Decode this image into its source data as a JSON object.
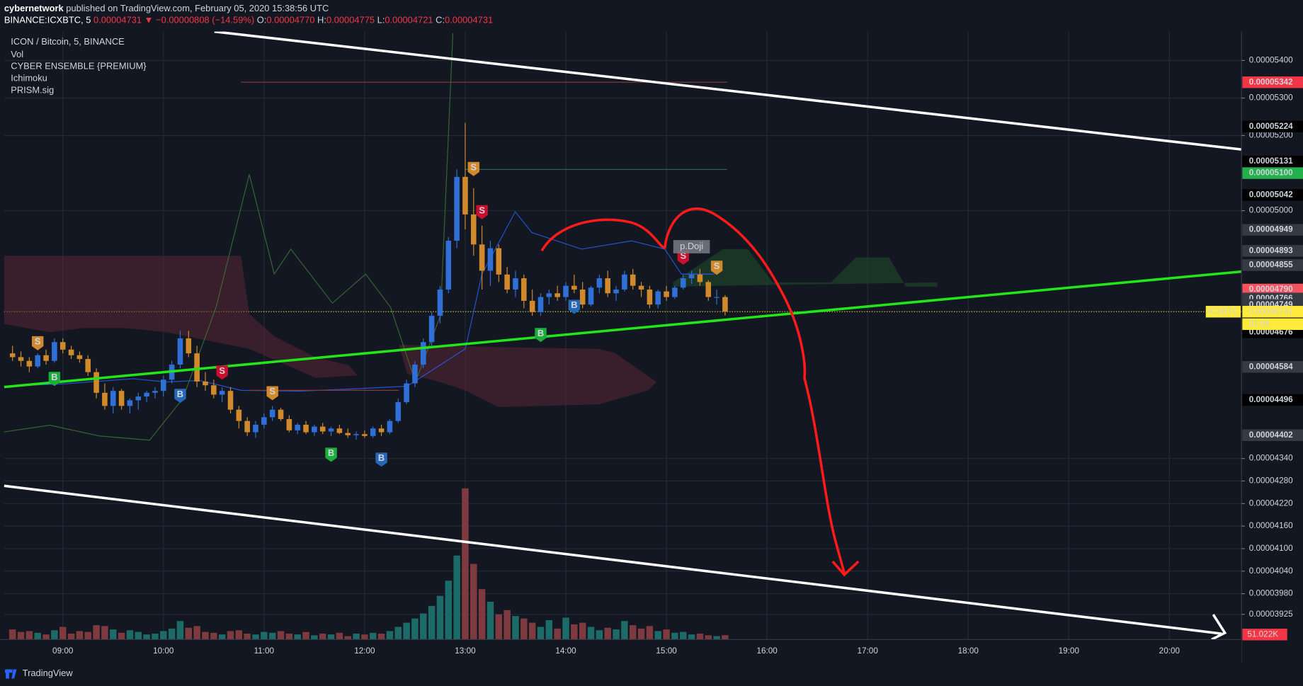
{
  "header": {
    "author": "cybernetwork",
    "published": "published on TradingView.com, February 05, 2020 15:38:56 UTC",
    "symbol": "BINANCE:ICXBTC, 5",
    "last": "0.00004731",
    "arrow": "▼",
    "change": "−0.00000808 (−14.59%)",
    "ohlc": [
      {
        "k": "O:",
        "v": "0.00004770"
      },
      {
        "k": "H:",
        "v": "0.00004775"
      },
      {
        "k": "L:",
        "v": "0.00004721"
      },
      {
        "k": "C:",
        "v": "0.00004731"
      }
    ]
  },
  "chart_data": {
    "type": "candlestick",
    "indicators": [
      "CYBER ENSEMBLE {PREMIUM}",
      "Ichimoku",
      "PRISM.sig"
    ],
    "x": [
      "08:30",
      "08:35",
      "08:40",
      "08:45",
      "08:50",
      "08:55",
      "09:00",
      "09:05",
      "09:10",
      "09:15",
      "09:20",
      "09:25",
      "09:30",
      "09:35",
      "09:40",
      "09:45",
      "09:50",
      "09:55",
      "10:00",
      "10:05",
      "10:10",
      "10:15",
      "10:20",
      "10:25",
      "10:30",
      "10:35",
      "10:40",
      "10:45",
      "10:50",
      "10:55",
      "11:00",
      "11:05",
      "11:10",
      "11:15",
      "11:20",
      "11:25",
      "11:30",
      "11:35",
      "11:40",
      "11:45",
      "11:50",
      "11:55",
      "12:00",
      "12:05",
      "12:10",
      "12:15",
      "12:20",
      "12:25",
      "12:30",
      "12:35",
      "12:40",
      "12:45",
      "12:50",
      "12:55",
      "13:00",
      "13:05",
      "13:10",
      "13:15",
      "13:20",
      "13:25",
      "13:30",
      "13:35",
      "13:40",
      "13:45",
      "13:50",
      "13:55",
      "14:00",
      "14:05",
      "14:10",
      "14:15",
      "14:20",
      "14:25",
      "14:30",
      "14:35",
      "14:40",
      "14:45",
      "14:50",
      "14:55",
      "15:00",
      "15:05",
      "15:10",
      "15:15",
      "15:20",
      "15:25",
      "15:30",
      "15:35"
    ],
    "series": [
      {
        "name": "ICON / Bitcoin, 5, BINANCE",
        "up_color": "#2f6fd6",
        "down_color": "#d08a2c",
        "open": [
          4.62e-05,
          4.61e-05,
          4.6e-05,
          4.585e-05,
          4.615e-05,
          4.6e-05,
          4.65e-05,
          4.63e-05,
          4.615e-05,
          4.605e-05,
          4.57e-05,
          4.515e-05,
          4.48e-05,
          4.52e-05,
          4.48e-05,
          4.495e-05,
          4.505e-05,
          4.515e-05,
          4.52e-05,
          4.55e-05,
          4.59e-05,
          4.66e-05,
          4.62e-05,
          4.545e-05,
          4.535e-05,
          4.51e-05,
          4.52e-05,
          4.47e-05,
          4.44e-05,
          4.41e-05,
          4.43e-05,
          4.45e-05,
          4.47e-05,
          4.445e-05,
          4.415e-05,
          4.43e-05,
          4.41e-05,
          4.425e-05,
          4.412e-05,
          4.42e-05,
          4.408e-05,
          4.402e-05,
          4.405e-05,
          4.4e-05,
          4.42e-05,
          4.41e-05,
          4.44e-05,
          4.49e-05,
          4.54e-05,
          4.59e-05,
          4.65e-05,
          4.72e-05,
          4.79e-05,
          4.92e-05,
          5.09e-05,
          4.99e-05,
          4.91e-05,
          4.84e-05,
          4.9e-05,
          4.83e-05,
          4.79e-05,
          4.82e-05,
          4.76e-05,
          4.73e-05,
          4.77e-05,
          4.78e-05,
          4.77e-05,
          4.8e-05,
          4.79e-05,
          4.75e-05,
          4.795e-05,
          4.82e-05,
          4.78e-05,
          4.79e-05,
          4.83e-05,
          4.8e-05,
          4.79e-05,
          4.75e-05,
          4.785e-05,
          4.77e-05,
          4.795e-05,
          4.82e-05,
          4.83e-05,
          4.81e-05,
          4.77e-05,
          4.77e-05
        ],
        "high": [
          4.64e-05,
          4.625e-05,
          4.61e-05,
          4.62e-05,
          4.63e-05,
          4.66e-05,
          4.66e-05,
          4.64e-05,
          4.625e-05,
          4.615e-05,
          4.58e-05,
          4.54e-05,
          4.53e-05,
          4.525e-05,
          4.5e-05,
          4.515e-05,
          4.52e-05,
          4.53e-05,
          4.56e-05,
          4.6e-05,
          4.68e-05,
          4.68e-05,
          4.64e-05,
          4.57e-05,
          4.55e-05,
          4.53e-05,
          4.53e-05,
          4.48e-05,
          4.45e-05,
          4.44e-05,
          4.46e-05,
          4.48e-05,
          4.475e-05,
          4.455e-05,
          4.435e-05,
          4.44e-05,
          4.43e-05,
          4.435e-05,
          4.425e-05,
          4.43e-05,
          4.42e-05,
          4.412e-05,
          4.415e-05,
          4.425e-05,
          4.43e-05,
          4.445e-05,
          4.5e-05,
          4.55e-05,
          4.6e-05,
          4.66e-05,
          4.73e-05,
          4.8e-05,
          4.93e-05,
          5.11e-05,
          5.234e-05,
          5.06e-05,
          4.96e-05,
          4.92e-05,
          4.91e-05,
          4.85e-05,
          4.84e-05,
          4.83e-05,
          4.79e-05,
          4.78e-05,
          4.79e-05,
          4.8e-05,
          4.81e-05,
          4.83e-05,
          4.81e-05,
          4.8e-05,
          4.83e-05,
          4.84e-05,
          4.8e-05,
          4.84e-05,
          4.845e-05,
          4.81e-05,
          4.8e-05,
          4.79e-05,
          4.8e-05,
          4.8e-05,
          4.83e-05,
          4.84e-05,
          4.845e-05,
          4.815e-05,
          4.79e-05,
          4.775e-05
        ],
        "low": [
          4.6e-05,
          4.585e-05,
          4.57e-05,
          4.58e-05,
          4.59e-05,
          4.595e-05,
          4.62e-05,
          4.605e-05,
          4.595e-05,
          4.56e-05,
          4.5e-05,
          4.47e-05,
          4.46e-05,
          4.47e-05,
          4.46e-05,
          4.47e-05,
          4.49e-05,
          4.5e-05,
          4.505e-05,
          4.54e-05,
          4.58e-05,
          4.61e-05,
          4.53e-05,
          4.52e-05,
          4.5e-05,
          4.49e-05,
          4.46e-05,
          4.42e-05,
          4.4e-05,
          4.395e-05,
          4.42e-05,
          4.44e-05,
          4.44e-05,
          4.41e-05,
          4.405e-05,
          4.405e-05,
          4.4e-05,
          4.405e-05,
          4.4e-05,
          4.405e-05,
          4.395e-05,
          4.39e-05,
          4.395e-05,
          4.395e-05,
          4.4e-05,
          4.405e-05,
          4.435e-05,
          4.485e-05,
          4.53e-05,
          4.58e-05,
          4.64e-05,
          4.7e-05,
          4.78e-05,
          4.9e-05,
          4.95e-05,
          4.88e-05,
          4.79e-05,
          4.8e-05,
          4.81e-05,
          4.78e-05,
          4.77e-05,
          4.74e-05,
          4.72e-05,
          4.72e-05,
          4.75e-05,
          4.76e-05,
          4.76e-05,
          4.78e-05,
          4.74e-05,
          4.745e-05,
          4.78e-05,
          4.77e-05,
          4.76e-05,
          4.785e-05,
          4.79e-05,
          4.77e-05,
          4.74e-05,
          4.74e-05,
          4.76e-05,
          4.765e-05,
          4.79e-05,
          4.805e-05,
          4.8e-05,
          4.76e-05,
          4.75e-05,
          4.721e-05
        ],
        "close": [
          4.61e-05,
          4.6e-05,
          4.585e-05,
          4.615e-05,
          4.6e-05,
          4.65e-05,
          4.63e-05,
          4.615e-05,
          4.605e-05,
          4.57e-05,
          4.515e-05,
          4.48e-05,
          4.52e-05,
          4.48e-05,
          4.495e-05,
          4.505e-05,
          4.515e-05,
          4.52e-05,
          4.55e-05,
          4.59e-05,
          4.66e-05,
          4.62e-05,
          4.545e-05,
          4.535e-05,
          4.51e-05,
          4.52e-05,
          4.47e-05,
          4.44e-05,
          4.41e-05,
          4.43e-05,
          4.45e-05,
          4.47e-05,
          4.445e-05,
          4.415e-05,
          4.43e-05,
          4.41e-05,
          4.425e-05,
          4.412e-05,
          4.42e-05,
          4.408e-05,
          4.402e-05,
          4.405e-05,
          4.4e-05,
          4.42e-05,
          4.41e-05,
          4.44e-05,
          4.49e-05,
          4.54e-05,
          4.59e-05,
          4.65e-05,
          4.72e-05,
          4.79e-05,
          4.92e-05,
          5.09e-05,
          4.99e-05,
          4.91e-05,
          4.84e-05,
          4.9e-05,
          4.83e-05,
          4.79e-05,
          4.82e-05,
          4.76e-05,
          4.73e-05,
          4.77e-05,
          4.78e-05,
          4.77e-05,
          4.8e-05,
          4.79e-05,
          4.75e-05,
          4.795e-05,
          4.82e-05,
          4.78e-05,
          4.79e-05,
          4.83e-05,
          4.8e-05,
          4.79e-05,
          4.75e-05,
          4.785e-05,
          4.77e-05,
          4.795e-05,
          4.82e-05,
          4.83e-05,
          4.81e-05,
          4.77e-05,
          4.77e-05,
          4.731e-05
        ]
      },
      {
        "name": "Vol",
        "up_color": "#1d6b68",
        "down_color": "#7e3a3e",
        "values": [
          120000,
          90000,
          100000,
          80000,
          60000,
          110000,
          150000,
          70000,
          100000,
          90000,
          170000,
          160000,
          120000,
          80000,
          110000,
          90000,
          60000,
          70000,
          100000,
          130000,
          220000,
          140000,
          160000,
          90000,
          80000,
          60000,
          100000,
          110000,
          70000,
          60000,
          90000,
          80000,
          100000,
          70000,
          60000,
          90000,
          50000,
          70000,
          60000,
          80000,
          40000,
          70000,
          60000,
          80000,
          70000,
          100000,
          150000,
          200000,
          250000,
          310000,
          400000,
          520000,
          700000,
          1000000,
          1800000,
          900000,
          600000,
          450000,
          300000,
          350000,
          280000,
          250000,
          200000,
          150000,
          230000,
          130000,
          260000,
          180000,
          200000,
          150000,
          110000,
          140000,
          120000,
          220000,
          170000,
          130000,
          160000,
          100000,
          120000,
          80000,
          90000,
          60000,
          70000,
          50000,
          40000,
          51022
        ],
        "value_label": "51.022K"
      }
    ],
    "xlim": [
      "08:25",
      "20:43"
    ],
    "xticks": [
      "09:00",
      "10:00",
      "11:00",
      "12:00",
      "13:00",
      "14:00",
      "15:00",
      "16:00",
      "17:00",
      "18:00",
      "19:00",
      "20:00"
    ],
    "ylim": [
      3.858e-05,
      5.477e-05
    ],
    "yticks": [
      {
        "value": 5.4e-05,
        "label": "0.00005400"
      },
      {
        "value": 5.3e-05,
        "label": "0.00005300"
      },
      {
        "value": 5.2e-05,
        "label": "0.00005200"
      },
      {
        "value": 5e-05,
        "label": "0.00005000"
      },
      {
        "value": 4.34e-05,
        "label": "0.00004340"
      },
      {
        "value": 4.28e-05,
        "label": "0.00004280"
      },
      {
        "value": 4.22e-05,
        "label": "0.00004220"
      },
      {
        "value": 4.16e-05,
        "label": "0.00004160"
      },
      {
        "value": 4.1e-05,
        "label": "0.00004100"
      },
      {
        "value": 4.04e-05,
        "label": "0.00004040"
      },
      {
        "value": 3.98e-05,
        "label": "0.00003980"
      },
      {
        "value": 3.925e-05,
        "label": "0.00003925"
      }
    ],
    "price_labels": [
      {
        "value": 5.342e-05,
        "label": "0.00005342",
        "color": "#f23645"
      },
      {
        "value": 5.224e-05,
        "label": "0.00005224",
        "color": "#000000"
      },
      {
        "value": 5.131e-05,
        "label": "0.00005131",
        "color": "#000000"
      },
      {
        "value": 5.1e-05,
        "label": "0.00005100",
        "color": "#22b14c"
      },
      {
        "value": 5.042e-05,
        "label": "0.00005042",
        "color": "#000000"
      },
      {
        "value": 4.949e-05,
        "label": "0.00004949",
        "color": "#363a45"
      },
      {
        "value": 4.893e-05,
        "label": "0.00004893",
        "color": "#363a45"
      },
      {
        "value": 4.855e-05,
        "label": "0.00004855",
        "color": "#363a45"
      },
      {
        "value": 4.79e-05,
        "label": "0.00004790",
        "color": "#f7525f"
      },
      {
        "value": 4.766e-05,
        "label": "0.00004766",
        "color": "#363a45"
      },
      {
        "value": 4.749e-05,
        "label": "0.00004749",
        "color": "#363a45"
      },
      {
        "value": 4.676e-05,
        "label": "0.00004676",
        "color": "#000000"
      },
      {
        "value": 4.584e-05,
        "label": "0.00004584",
        "color": "#363a45"
      },
      {
        "value": 4.496e-05,
        "label": "0.00004496",
        "color": "#000000"
      },
      {
        "value": 4.402e-05,
        "label": "0.00004402",
        "color": "#363a45"
      }
    ],
    "current": {
      "value": 4.731e-05,
      "label": "0.00004731",
      "symbol": "ICXBTC",
      "countdown": "01:06",
      "color": "#ffeb3b"
    },
    "signals": [
      {
        "label": "S",
        "x": "08:45",
        "y": 4.648e-05,
        "color": "#d08a2c"
      },
      {
        "label": "B",
        "x": "08:55",
        "y": 4.553e-05,
        "color": "#1cae3a"
      },
      {
        "label": "B",
        "x": "10:10",
        "y": 4.508e-05,
        "color": "#2568b8"
      },
      {
        "label": "S",
        "x": "10:35",
        "y": 4.57e-05,
        "color": "#c8102e"
      },
      {
        "label": "S",
        "x": "11:05",
        "y": 4.515e-05,
        "color": "#d08a2c"
      },
      {
        "label": "B",
        "x": "11:40",
        "y": 4.351e-05,
        "color": "#1cae3a"
      },
      {
        "label": "B",
        "x": "12:10",
        "y": 4.338e-05,
        "color": "#2568b8"
      },
      {
        "label": "S",
        "x": "13:05",
        "y": 5.112e-05,
        "color": "#d08a2c"
      },
      {
        "label": "S",
        "x": "13:10",
        "y": 4.997e-05,
        "color": "#c8102e"
      },
      {
        "label": "B",
        "x": "13:45",
        "y": 4.67e-05,
        "color": "#1cae3a"
      },
      {
        "label": "B",
        "x": "14:05",
        "y": 4.745e-05,
        "color": "#2568b8"
      },
      {
        "label": "S",
        "x": "15:10",
        "y": 4.876e-05,
        "color": "#c8102e"
      },
      {
        "label": "S",
        "x": "15:30",
        "y": 4.849e-05,
        "color": "#d08a2c"
      }
    ],
    "pattern": {
      "label": "p.Doji",
      "x": "15:15",
      "y": 4.904e-05
    }
  },
  "footer": {
    "brand": "TradingView"
  }
}
